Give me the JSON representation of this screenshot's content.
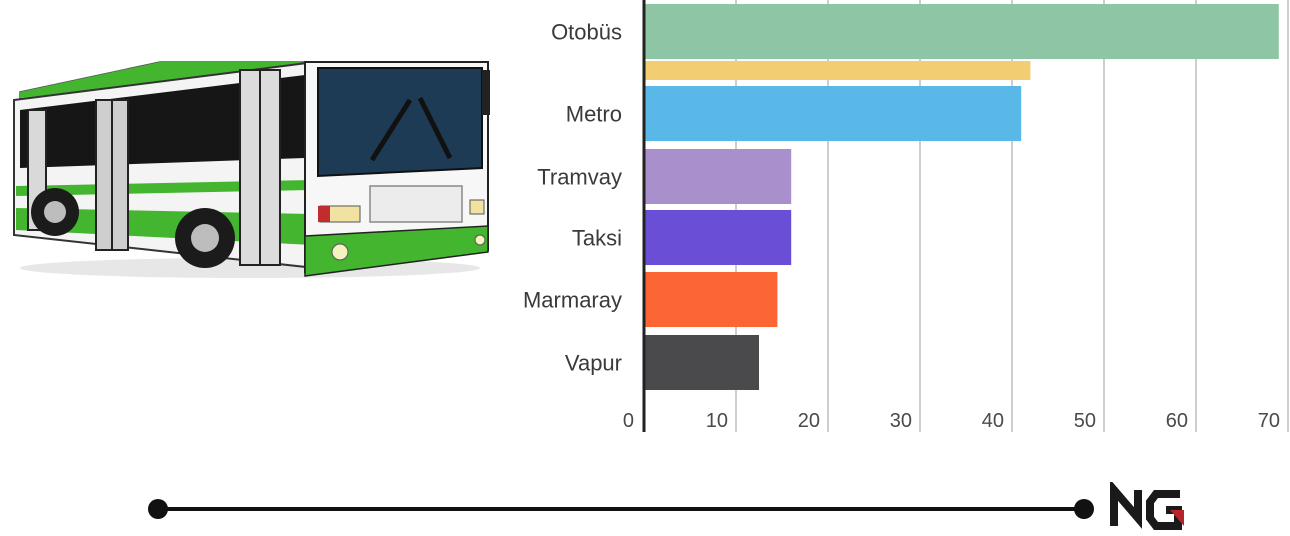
{
  "chart_data": {
    "type": "bar",
    "orientation": "horizontal",
    "rows": [
      {
        "category": "Otobüs",
        "value": 69,
        "color": "#8ec6a5"
      },
      {
        "category": "",
        "value": 42,
        "color": "#f2cd72"
      },
      {
        "category": "Metro",
        "value": 41,
        "color": "#5ab8e8"
      },
      {
        "category": "Tramvay",
        "value": 16,
        "color": "#a98fcb"
      },
      {
        "category": "Taksi",
        "value": 16,
        "color": "#6a4fd6"
      },
      {
        "category": "Marmaray",
        "value": 14.5,
        "color": "#fb6634"
      },
      {
        "category": "Vapur",
        "value": 12.5,
        "color": "#4a4a4d"
      }
    ],
    "xticks": [
      "0",
      "10",
      "20",
      "30",
      "40",
      "50",
      "60",
      "70"
    ],
    "xlim": [
      0,
      70
    ],
    "grid": true,
    "legend": "none"
  },
  "illustration": {
    "icon": "bus-icon",
    "colors": {
      "green": "#43b52e",
      "window": "#1e3b55",
      "body": "#f4f4f4"
    }
  },
  "logo": {
    "text": "NG",
    "colors": {
      "dark": "#1a1a1a",
      "accent": "#b8242b"
    }
  },
  "timeline": {
    "color": "#111111"
  }
}
